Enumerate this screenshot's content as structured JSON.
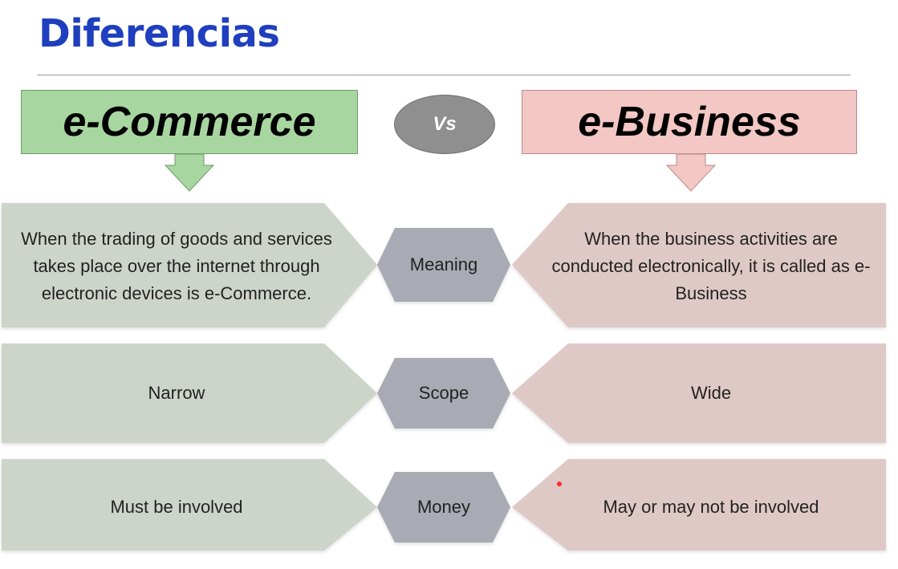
{
  "title": "Diferencias",
  "left_header": "e-Commerce",
  "vs_label": "Vs",
  "right_header": "e-Business",
  "rows": [
    {
      "category": "Meaning",
      "left": "When the trading of goods and services takes place over the internet through electronic devices is e-Commerce.",
      "right": "When the business activities are conducted electronically, it is called as e-Business"
    },
    {
      "category": "Scope",
      "left": "Narrow",
      "right": "Wide"
    },
    {
      "category": "Money",
      "left": "Must be involved",
      "right": "May or may not be involved"
    }
  ],
  "colors": {
    "title": "#1f3fbf",
    "ecommerce": "#a8d6a0",
    "ebusiness": "#f3c7c4",
    "row_left": "#cdd4c9",
    "row_right": "#dfc9c6",
    "row_center": "#a9aab3",
    "vs": "#8f8f8f"
  }
}
